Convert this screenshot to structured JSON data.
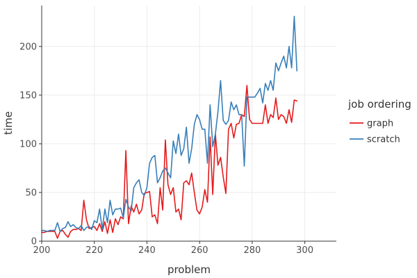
{
  "chart_data": {
    "type": "line",
    "xlabel": "problem",
    "ylabel": "time",
    "xlim": [
      200,
      312
    ],
    "ylim": [
      0,
      242
    ],
    "xticks": [
      200,
      220,
      240,
      260,
      280,
      300
    ],
    "yticks": [
      0,
      50,
      100,
      150,
      200
    ],
    "grid": true,
    "legend": {
      "title": "job ordering",
      "position": "right"
    },
    "series": [
      {
        "name": "graph",
        "color": "#e41a1c",
        "x": [
          200,
          201,
          202,
          203,
          204,
          205,
          206,
          207,
          208,
          209,
          210,
          211,
          212,
          213,
          214,
          215,
          216,
          217,
          218,
          219,
          220,
          221,
          222,
          223,
          224,
          225,
          226,
          227,
          228,
          229,
          230,
          231,
          232,
          233,
          234,
          235,
          236,
          237,
          238,
          239,
          240,
          241,
          242,
          243,
          244,
          245,
          246,
          247,
          248,
          249,
          250,
          251,
          252,
          253,
          254,
          255,
          256,
          257,
          258,
          259,
          260,
          261,
          262,
          263,
          264,
          265,
          266,
          267,
          268,
          269,
          270,
          271,
          272,
          273,
          274,
          275,
          276,
          277,
          278,
          279,
          280,
          281,
          282,
          283,
          284,
          285,
          286,
          287,
          288,
          289,
          290,
          291,
          292,
          293,
          294,
          295,
          296,
          297
        ],
        "values": [
          9,
          9,
          10,
          10,
          10,
          10,
          3,
          10,
          11,
          7,
          4,
          10,
          12,
          12,
          13,
          11,
          42,
          22,
          13,
          14,
          15,
          11,
          18,
          10,
          20,
          8,
          22,
          9,
          23,
          17,
          25,
          23,
          93,
          18,
          36,
          30,
          38,
          28,
          32,
          49,
          50,
          51,
          25,
          27,
          18,
          55,
          32,
          104,
          58,
          48,
          55,
          30,
          33,
          22,
          60,
          62,
          58,
          70,
          50,
          32,
          28,
          35,
          53,
          40,
          107,
          48,
          110,
          78,
          86,
          66,
          49,
          115,
          121,
          106,
          120,
          121,
          130,
          128,
          160,
          125,
          121,
          121,
          121,
          121,
          121,
          140,
          121,
          130,
          127,
          147,
          125,
          130,
          128,
          121,
          135,
          122,
          145,
          144
        ]
      },
      {
        "name": "scratch",
        "color": "#377eb8",
        "x": [
          200,
          201,
          202,
          203,
          204,
          205,
          206,
          207,
          208,
          209,
          210,
          211,
          212,
          213,
          214,
          215,
          216,
          217,
          218,
          219,
          220,
          221,
          222,
          223,
          224,
          225,
          226,
          227,
          228,
          229,
          230,
          231,
          232,
          233,
          234,
          235,
          236,
          237,
          238,
          239,
          240,
          241,
          242,
          243,
          244,
          245,
          246,
          247,
          248,
          249,
          250,
          251,
          252,
          253,
          254,
          255,
          256,
          257,
          258,
          259,
          260,
          261,
          262,
          263,
          264,
          265,
          266,
          267,
          268,
          269,
          270,
          271,
          272,
          273,
          274,
          275,
          276,
          277,
          278,
          279,
          280,
          281,
          282,
          283,
          284,
          285,
          286,
          287,
          288,
          289,
          290,
          291,
          292,
          293,
          294,
          295,
          296,
          297
        ],
        "values": [
          11,
          11,
          10,
          11,
          11,
          11,
          19,
          10,
          13,
          14,
          20,
          15,
          17,
          14,
          13,
          16,
          11,
          14,
          15,
          12,
          21,
          19,
          33,
          12,
          33,
          19,
          42,
          27,
          33,
          33,
          34,
          24,
          43,
          35,
          31,
          55,
          60,
          63,
          50,
          47,
          55,
          80,
          86,
          88,
          60,
          65,
          72,
          75,
          70,
          65,
          103,
          90,
          110,
          88,
          95,
          117,
          80,
          95,
          120,
          130,
          125,
          115,
          115,
          80,
          140,
          97,
          110,
          133,
          165,
          124,
          120,
          124,
          143,
          135,
          140,
          130,
          130,
          77,
          148,
          148,
          148,
          148,
          152,
          157,
          142,
          162,
          155,
          165,
          155,
          183,
          175,
          183,
          190,
          178,
          200,
          178,
          231,
          175
        ]
      }
    ]
  }
}
